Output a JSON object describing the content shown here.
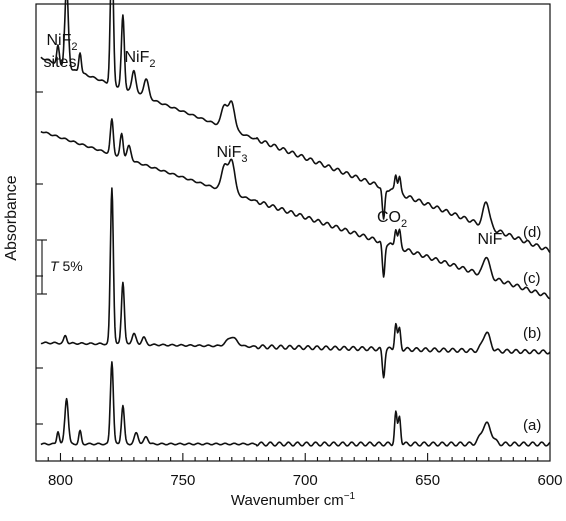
{
  "chart_data": {
    "type": "line",
    "xlabel": "Wavenumber cm",
    "xlabel_sup": "−1",
    "ylabel": "Absorbance",
    "xlim": [
      810,
      600
    ],
    "x_reversed": true,
    "x_ticks": [
      "800",
      "750",
      "700",
      "650",
      "600"
    ],
    "y_ticks_unlabeled": true,
    "scale_bar": {
      "label_italic": "T",
      "label": " 5%"
    },
    "series": [
      {
        "name": "(a)",
        "baseline": 0.0,
        "tilt": 0.0,
        "peaks": [
          [
            801,
            0.14,
            0.5
          ],
          [
            797.5,
            0.5,
            0.7
          ],
          [
            792,
            0.14,
            0.5
          ],
          [
            779,
            0.9,
            0.6
          ],
          [
            774.5,
            0.42,
            0.6
          ],
          [
            769,
            0.12,
            0.8
          ],
          [
            765,
            0.08,
            0.8
          ],
          [
            663,
            0.34,
            0.5
          ],
          [
            661.5,
            0.3,
            0.5
          ],
          [
            626,
            0.22,
            2.0
          ]
        ]
      },
      {
        "name": "(b)",
        "baseline": 1.0,
        "tilt": 0.1,
        "peaks": [
          [
            798,
            0.08,
            0.6
          ],
          [
            779,
            1.7,
            0.6
          ],
          [
            774.5,
            0.68,
            0.6
          ],
          [
            770,
            0.12,
            0.8
          ],
          [
            766,
            0.08,
            0.8
          ],
          [
            730,
            0.1,
            2.0
          ],
          [
            663,
            0.28,
            0.5
          ],
          [
            661.5,
            0.22,
            0.5
          ],
          [
            668,
            -0.3,
            0.5
          ],
          [
            626,
            0.2,
            1.5
          ]
        ]
      },
      {
        "name": "(c)",
        "baseline": 1.6,
        "tilt": 1.8,
        "peaks": [
          [
            779,
            0.38,
            0.6
          ],
          [
            775,
            0.26,
            0.6
          ],
          [
            772,
            0.15,
            0.8
          ],
          [
            733,
            0.28,
            1.2
          ],
          [
            730,
            0.36,
            1.2
          ],
          [
            668,
            -0.38,
            0.5
          ],
          [
            663,
            0.2,
            0.5
          ],
          [
            661.5,
            0.18,
            0.5
          ],
          [
            626,
            0.22,
            1.2
          ]
        ]
      },
      {
        "name": "(d)",
        "baseline": 2.1,
        "tilt": 2.1,
        "peaks": [
          [
            801,
            0.2,
            0.5
          ],
          [
            797.5,
            0.88,
            0.7
          ],
          [
            792,
            0.22,
            0.5
          ],
          [
            779,
            1.5,
            0.6
          ],
          [
            774.5,
            0.8,
            0.6
          ],
          [
            770,
            0.25,
            0.8
          ],
          [
            765,
            0.2,
            1.0
          ],
          [
            733,
            0.24,
            1.2
          ],
          [
            730,
            0.3,
            1.2
          ],
          [
            668,
            -0.36,
            0.5
          ],
          [
            663,
            0.2,
            0.5
          ],
          [
            661.5,
            0.18,
            0.5
          ],
          [
            626,
            0.28,
            1.2
          ]
        ]
      }
    ],
    "annotations": [
      {
        "text": "NiF",
        "sub": "2",
        "line2": "sites",
        "x": 797
      },
      {
        "text": "NiF",
        "sub": "2",
        "x": 778
      },
      {
        "text": "NiF",
        "sub": "3",
        "x": 731
      },
      {
        "text": "CO",
        "sub": "2",
        "x": 665
      },
      {
        "text": "NiF",
        "sub": "",
        "x": 626
      }
    ]
  }
}
